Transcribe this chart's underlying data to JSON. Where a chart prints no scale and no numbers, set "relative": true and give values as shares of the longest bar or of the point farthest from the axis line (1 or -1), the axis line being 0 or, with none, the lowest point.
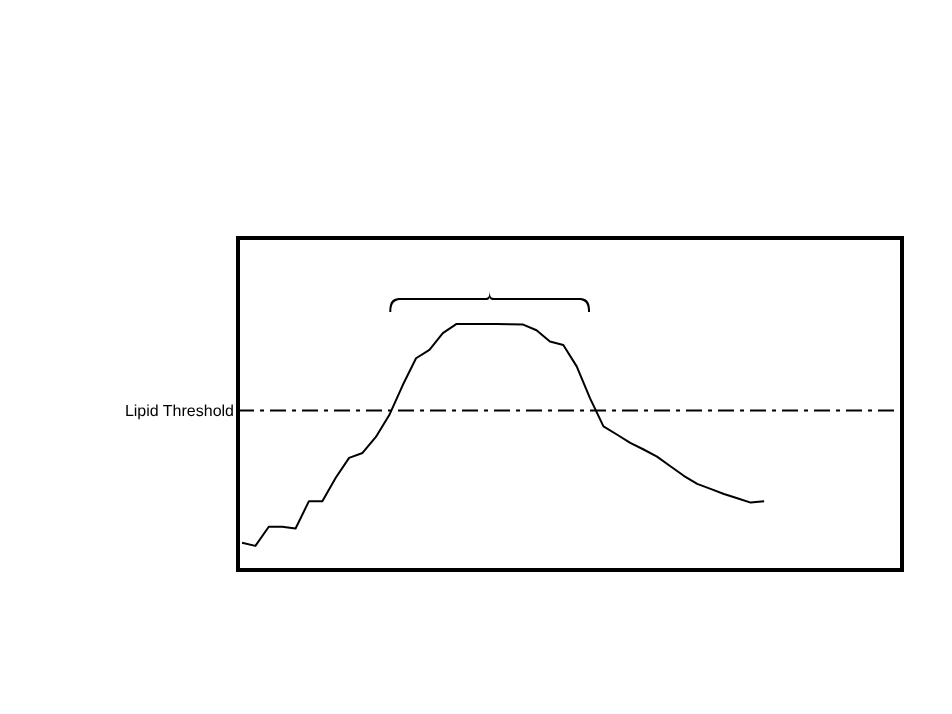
{
  "chart_data": {
    "type": "line",
    "relative": true,
    "categories": [
      null,
      null,
      null,
      null,
      null,
      null,
      null,
      null,
      null,
      null,
      null,
      null,
      null,
      null,
      null,
      null,
      null,
      null,
      null,
      null,
      null,
      null,
      null,
      null,
      null,
      null,
      null,
      null,
      null,
      null,
      null,
      null,
      null,
      null,
      null,
      null,
      null,
      null,
      null,
      null,
      null,
      null,
      null,
      null,
      null,
      null,
      null,
      null,
      null,
      null
    ],
    "series": [
      {
        "color": "#000000",
        "values": [
          0.111,
          0.098,
          0.176,
          0.176,
          0.169,
          0.28,
          0.28,
          0.375,
          0.456,
          0.476,
          0.541,
          0.63,
          0.751,
          0.861,
          0.895,
          0.963,
          1,
          1,
          1,
          1,
          0.999,
          0.998,
          0.975,
          0.929,
          0.915,
          0.828,
          0.698,
          0.584,
          0.551,
          0.517,
          0.49,
          0.461,
          0.422,
          0.383,
          0.35,
          0.33,
          0.309,
          0.292,
          0.274,
          0.28,
          null,
          null,
          null,
          null,
          null,
          null,
          null,
          null,
          null,
          null
        ]
      }
    ],
    "ref_lines": [
      {
        "axis": "y",
        "value": 0.649,
        "label": "Lipid Threshold",
        "color": "#000000",
        "line_style": "dashed"
      }
    ]
  }
}
